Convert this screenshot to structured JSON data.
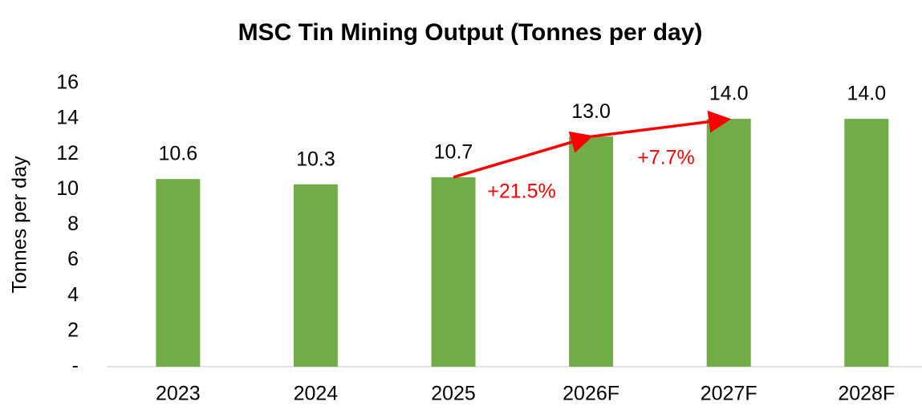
{
  "chart_data": {
    "type": "bar",
    "title": "MSC Tin Mining Output (Tonnes per day)",
    "y_axis_label": "Tonnes per day",
    "categories": [
      "2023",
      "2024",
      "2025",
      "2026F",
      "2027F",
      "2028F"
    ],
    "values": [
      10.6,
      10.3,
      10.7,
      13,
      14,
      14
    ],
    "value_labels": [
      "10.6",
      "10.3",
      "10.7",
      "13.0",
      "14.0",
      "14.0"
    ],
    "color": "#70ad47",
    "ylim": [
      0,
      16
    ],
    "yticks": [
      {
        "value": 0,
        "label": "-"
      },
      2,
      4,
      6,
      8,
      10,
      12,
      14,
      16
    ],
    "grid": false,
    "annotations": [
      {
        "text": "+21.5%",
        "color": "#ff0000"
      },
      {
        "text": "+7.7%",
        "color": "#ff0000"
      }
    ]
  }
}
